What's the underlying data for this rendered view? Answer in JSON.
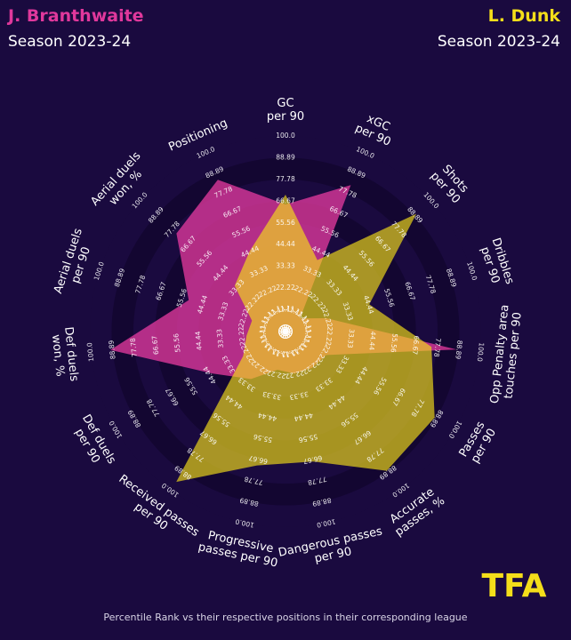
{
  "header": {
    "player_a": "J. Branthwaite",
    "player_b": "L. Dunk",
    "season_a": "Season 2023-24",
    "season_b": "Season 2023-24"
  },
  "colors": {
    "background": "#1a0a3f",
    "player_a": "#e0389c",
    "player_b": "#f4de1a",
    "ring_dark": "#130631",
    "ring_light": "#1a0a3f",
    "text": "#ffffff"
  },
  "logo": {
    "text": "TFA"
  },
  "footnote": "Percentile Rank vs their respective positions in their corresponding league",
  "chart_data": {
    "type": "radar",
    "scale": [
      0,
      100
    ],
    "ring_labels": [
      "0.00",
      "11.11",
      "22.22",
      "33.33",
      "44.44",
      "55.56",
      "66.67",
      "77.78",
      "88.89",
      "100.0"
    ],
    "axes": [
      {
        "label": [
          "GC",
          "per 90"
        ]
      },
      {
        "label": [
          "xGC",
          "per 90"
        ]
      },
      {
        "label": [
          "Shots",
          "per 90"
        ]
      },
      {
        "label": [
          "Dribbles",
          "per 90"
        ]
      },
      {
        "label": [
          "Opp Penalty area",
          "touches per 90"
        ]
      },
      {
        "label": [
          "Passes",
          "per 90"
        ]
      },
      {
        "label": [
          "Accurate",
          "passes, %"
        ]
      },
      {
        "label": [
          "Dangerous passes",
          "per 90"
        ]
      },
      {
        "label": [
          "Progressive",
          "passes per 90"
        ]
      },
      {
        "label": [
          "Received passes",
          "per 90"
        ]
      },
      {
        "label": [
          "Def duels",
          "per 90"
        ]
      },
      {
        "label": [
          "Def duels",
          "won, %"
        ]
      },
      {
        "label": [
          "Aerial duels",
          "per 90"
        ]
      },
      {
        "label": [
          "Aerial duels",
          "won, %"
        ]
      },
      {
        "label": [
          "Positioning"
        ]
      }
    ],
    "series": [
      {
        "name": "J. Branthwaite",
        "values": [
          65,
          82,
          10,
          22,
          88,
          24,
          23,
          22,
          20,
          30,
          43,
          90,
          52,
          75,
          85
        ]
      },
      {
        "name": "L. Dunk",
        "values": [
          70,
          40,
          90,
          45,
          75,
          88,
          88,
          68,
          70,
          95,
          25,
          20,
          18,
          35,
          45
        ]
      }
    ]
  }
}
